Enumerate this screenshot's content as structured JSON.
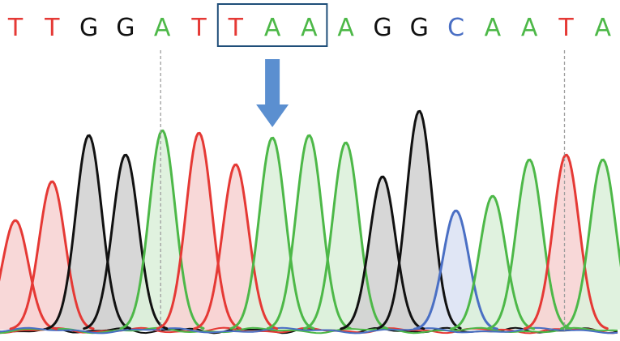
{
  "sequence": {
    "bases": [
      "T",
      "T",
      "G",
      "G",
      "A",
      "T",
      "T",
      "A",
      "A",
      "A",
      "G",
      "G",
      "C",
      "A",
      "A",
      "T",
      "A"
    ],
    "highlighted_indices": [
      6,
      7,
      8
    ],
    "marker_indices": [
      4,
      15
    ]
  },
  "colors": {
    "A": "#4db848",
    "T": "#e53935",
    "G": "#111111",
    "C": "#4a6fc4",
    "A_fill": "#ddf1dc",
    "T_fill": "#f7d4d4",
    "G_fill": "#d3d3d3",
    "C_fill": "#dde3f4",
    "highlight_box": "#1f4e79",
    "arrow": "#5b8fd0",
    "marker_line": "#9e9e9e"
  },
  "peaks": {
    "relative_heights": [
      0.45,
      0.61,
      0.8,
      0.72,
      0.82,
      0.81,
      0.68,
      0.79,
      0.8,
      0.77,
      0.63,
      0.9,
      0.49,
      0.55,
      0.7,
      0.72,
      0.7
    ]
  },
  "icons": {
    "arrow": "down-arrow-icon",
    "box": "highlight-box",
    "marker": "dashed-marker-line"
  }
}
